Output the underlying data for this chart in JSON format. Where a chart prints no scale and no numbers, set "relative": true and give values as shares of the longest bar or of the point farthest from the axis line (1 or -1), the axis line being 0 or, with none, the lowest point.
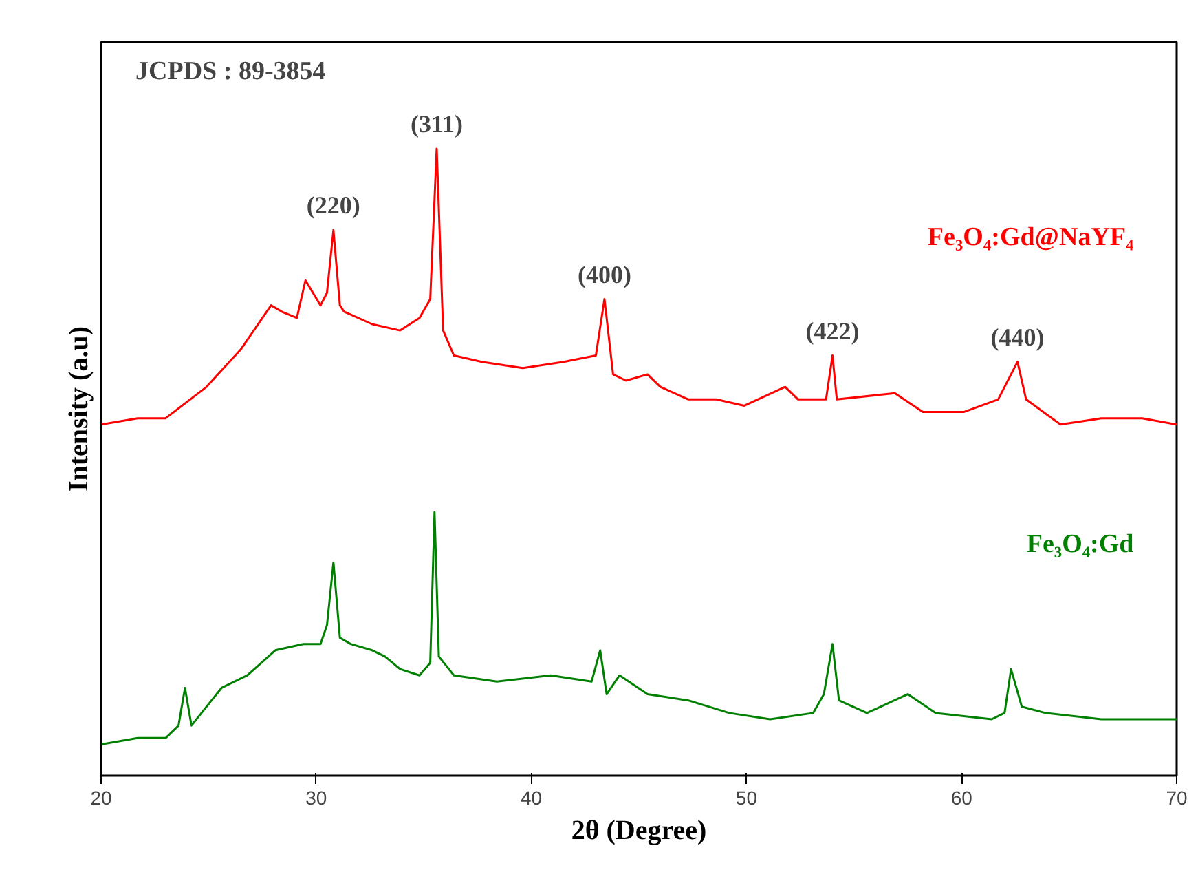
{
  "chart_data": {
    "type": "line",
    "relative": true,
    "xlabel": "2θ (Degree)",
    "ylabel": "Intensity (a.u)",
    "xlim": [
      20,
      70
    ],
    "xticks": [
      20,
      30,
      40,
      50,
      60,
      70
    ],
    "grid": false,
    "legend": false,
    "marker": "none",
    "line_style": "solid",
    "series": [
      {
        "name": "Fe₃O₄:Gd@NaYF₄",
        "color": "#ff0000",
        "x": [
          20.0,
          21.7,
          23.0,
          24.9,
          26.5,
          27.9,
          28.4,
          29.1,
          29.5,
          30.2,
          30.5,
          30.8,
          31.1,
          31.3,
          32.6,
          33.9,
          34.8,
          35.3,
          35.6,
          35.9,
          36.4,
          37.7,
          39.6,
          41.5,
          43.0,
          43.4,
          43.8,
          44.4,
          45.4,
          46.0,
          47.3,
          48.6,
          49.9,
          51.8,
          52.4,
          53.7,
          54.0,
          54.2,
          56.9,
          58.2,
          60.1,
          61.7,
          62.6,
          63.0,
          64.6,
          66.5,
          68.4,
          70.0
        ],
        "values": [
          0.56,
          0.57,
          0.57,
          0.62,
          0.68,
          0.75,
          0.74,
          0.73,
          0.79,
          0.75,
          0.77,
          0.87,
          0.75,
          0.74,
          0.72,
          0.71,
          0.73,
          0.76,
          1.0,
          0.71,
          0.67,
          0.66,
          0.65,
          0.66,
          0.67,
          0.76,
          0.64,
          0.63,
          0.64,
          0.62,
          0.6,
          0.6,
          0.59,
          0.62,
          0.6,
          0.6,
          0.67,
          0.6,
          0.61,
          0.58,
          0.58,
          0.6,
          0.66,
          0.6,
          0.56,
          0.57,
          0.57,
          0.56
        ]
      },
      {
        "name": "Fe₃O₄:Gd",
        "color": "#008000",
        "x": [
          20.0,
          21.7,
          23.0,
          23.6,
          23.9,
          24.2,
          25.6,
          26.8,
          28.1,
          29.4,
          30.2,
          30.5,
          30.8,
          31.1,
          31.6,
          32.6,
          33.2,
          33.9,
          34.8,
          35.3,
          35.5,
          35.7,
          36.4,
          38.4,
          40.9,
          42.8,
          43.2,
          43.5,
          44.1,
          45.4,
          47.3,
          49.2,
          51.1,
          53.1,
          53.6,
          54.0,
          54.3,
          55.6,
          57.5,
          58.8,
          61.4,
          62.0,
          62.3,
          62.8,
          63.9,
          66.5,
          68.4,
          70.0
        ],
        "values": [
          0.05,
          0.06,
          0.06,
          0.08,
          0.14,
          0.08,
          0.14,
          0.16,
          0.2,
          0.21,
          0.21,
          0.24,
          0.34,
          0.22,
          0.21,
          0.2,
          0.19,
          0.17,
          0.16,
          0.18,
          0.42,
          0.19,
          0.16,
          0.15,
          0.16,
          0.15,
          0.2,
          0.13,
          0.16,
          0.13,
          0.12,
          0.1,
          0.09,
          0.1,
          0.13,
          0.21,
          0.12,
          0.1,
          0.13,
          0.1,
          0.09,
          0.1,
          0.17,
          0.11,
          0.1,
          0.09,
          0.09,
          0.09
        ]
      }
    ],
    "annotations": [
      "JCPDS : 89-3854",
      {
        "text": "(220)",
        "x": 30.8,
        "y": 0.87
      },
      {
        "text": "(311)",
        "x": 35.6,
        "y": 1.0
      },
      {
        "text": "(400)",
        "x": 43.4,
        "y": 0.76
      },
      {
        "text": "(422)",
        "x": 54.0,
        "y": 0.67
      },
      {
        "text": "(440)",
        "x": 62.6,
        "y": 0.66
      }
    ]
  }
}
